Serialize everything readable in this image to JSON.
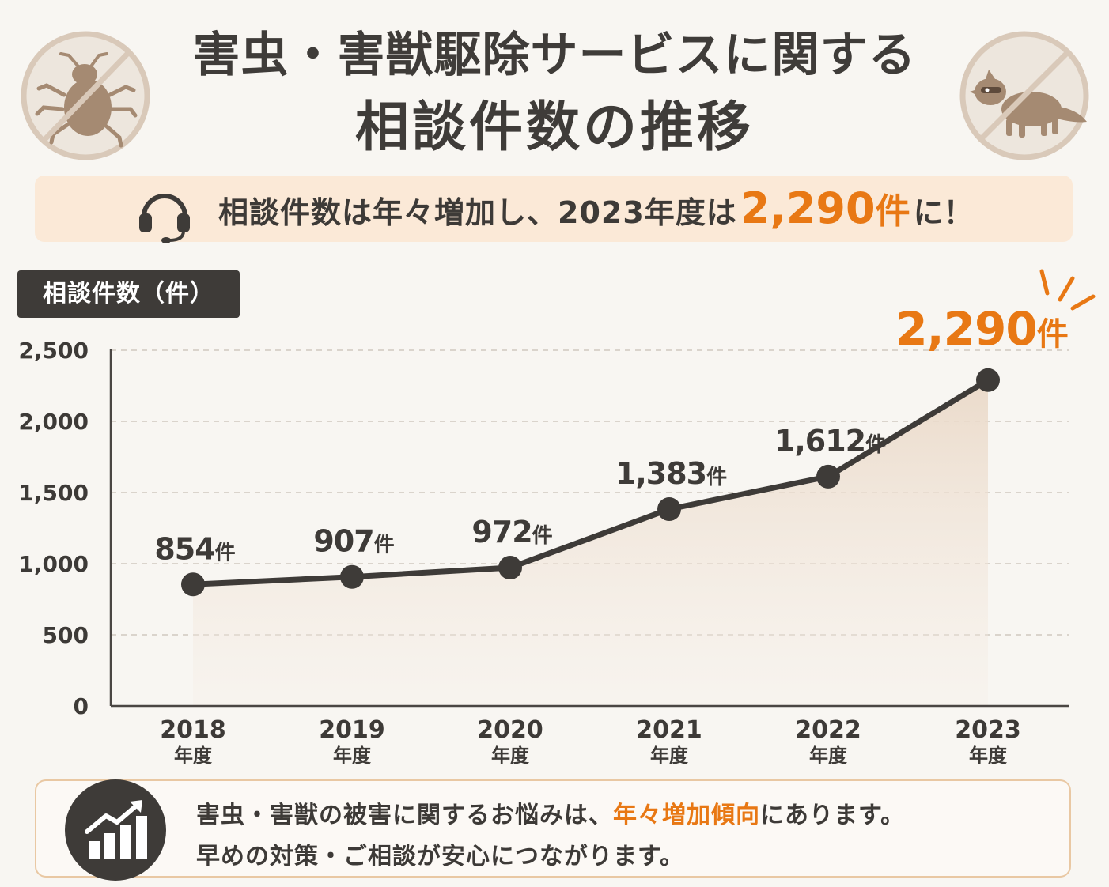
{
  "title": {
    "line1": "害虫・害獣駆除サービスに関する",
    "line2": "相談件数の推移"
  },
  "icons": {
    "left": "no-bug-icon",
    "right": "no-raccoon-icon",
    "banner": "headset-icon",
    "footer": "chart-growth-icon"
  },
  "banner": {
    "text_pre": "相談件数は年々増加し、2023年度は",
    "number": "2,290",
    "unit": "件",
    "text_post": "に！"
  },
  "colors": {
    "accent": "#e87814",
    "dark": "#3e3b38",
    "banner_bg": "#fbe9d7",
    "footer_border": "#e9c8a3"
  },
  "chart_data": {
    "type": "line",
    "ylabel": "相談件数（件）",
    "ylim": [
      0,
      2500
    ],
    "yticks": [
      0,
      500,
      1000,
      1500,
      2000,
      2500
    ],
    "ytick_labels": [
      "0",
      "500",
      "1,000",
      "1,500",
      "2,000",
      "2,500"
    ],
    "categories": [
      "2018",
      "2019",
      "2020",
      "2021",
      "2022",
      "2023"
    ],
    "category_suffix": "年度",
    "series": [
      {
        "values": [
          854,
          907,
          972,
          1383,
          1612,
          2290
        ],
        "labels": [
          "854",
          "907",
          "972",
          "1,383",
          "1,612",
          "2,290"
        ],
        "label_unit": "件",
        "highlight_last": true
      }
    ],
    "grid": true
  },
  "footer": {
    "line1_pre": "害虫・害獣の被害に関するお悩みは、",
    "line1_highlight": "年々増加傾向",
    "line1_post": "にあります。",
    "line2": "早めの対策・ご相談が安心につながります。"
  }
}
